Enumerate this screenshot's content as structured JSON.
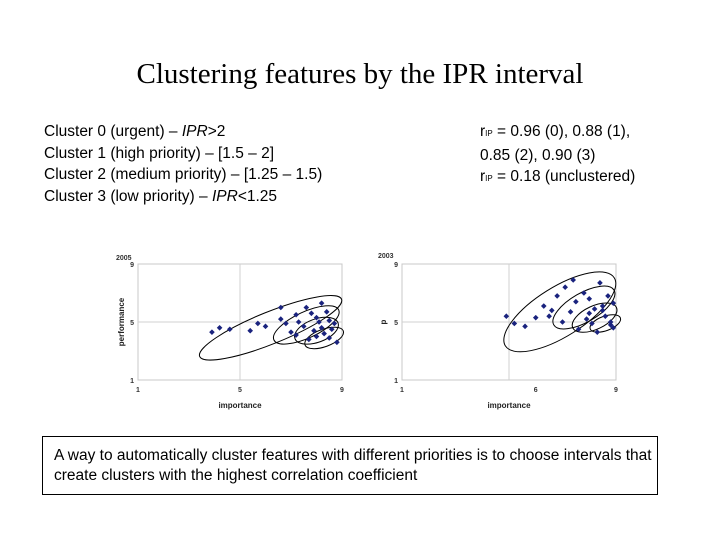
{
  "title": "Clustering features by the IPR interval",
  "clusters": [
    {
      "prefix": "Cluster 0 (urgent) – ",
      "ipr": "IPR",
      "suffix": ">2"
    },
    {
      "prefix": "Cluster 1 (high priority) – [1.5 – 2]",
      "ipr": "",
      "suffix": ""
    },
    {
      "prefix": "Cluster 2 (medium priority) – [1.25 – 1.5)",
      "ipr": "",
      "suffix": ""
    },
    {
      "prefix": "Cluster 3 (low priority) – ",
      "ipr": "IPR",
      "suffix": "<1.25"
    }
  ],
  "correlation": {
    "r_symbol": "r",
    "r_subscript": "IP",
    "line1_rest": " = 0.96 (0), 0.88 (1),",
    "line2": "0.85 (2), 0.90 (3)",
    "line3_rest": " = 0.18 (unclustered)"
  },
  "plots": [
    {
      "year": "2005",
      "xlabel": "importance",
      "ylabel": "performance",
      "xticks": [
        "1",
        "5",
        "9"
      ],
      "yticks": [
        "9",
        "5",
        "1"
      ],
      "marker_color": "#1a237e",
      "points": [
        [
          3.9,
          4.3
        ],
        [
          4.2,
          4.6
        ],
        [
          5.4,
          4.4
        ],
        [
          5.7,
          4.9
        ],
        [
          6.0,
          4.7
        ],
        [
          6.6,
          5.2
        ],
        [
          6.8,
          4.9
        ],
        [
          7.0,
          4.3
        ],
        [
          7.2,
          5.5
        ],
        [
          7.3,
          5.0
        ],
        [
          7.5,
          4.7
        ],
        [
          7.6,
          6.0
        ],
        [
          7.8,
          5.6
        ],
        [
          7.9,
          4.4
        ],
        [
          8.0,
          5.3
        ],
        [
          8.1,
          5.0
        ],
        [
          8.2,
          6.3
        ],
        [
          8.2,
          4.6
        ],
        [
          8.3,
          4.2
        ],
        [
          8.4,
          5.7
        ],
        [
          8.5,
          3.9
        ],
        [
          8.5,
          5.1
        ],
        [
          8.6,
          4.5
        ],
        [
          8.7,
          4.9
        ],
        [
          8.8,
          3.6
        ],
        [
          6.6,
          6.0
        ],
        [
          7.2,
          4.1
        ],
        [
          7.7,
          3.8
        ],
        [
          8.0,
          4.0
        ],
        [
          4.6,
          4.5
        ]
      ],
      "ellipses": "outlined"
    },
    {
      "year": "2003",
      "xlabel": "importance",
      "ylabel": "p",
      "xticks": [
        "1",
        "6",
        "9"
      ],
      "yticks": [
        "9",
        "5",
        "1"
      ],
      "marker_color": "#1a237e",
      "points": [
        [
          4.9,
          5.4
        ],
        [
          5.2,
          4.9
        ],
        [
          5.6,
          4.7
        ],
        [
          6.0,
          5.3
        ],
        [
          6.3,
          6.1
        ],
        [
          6.5,
          5.4
        ],
        [
          6.8,
          6.8
        ],
        [
          7.0,
          5.0
        ],
        [
          7.1,
          7.4
        ],
        [
          7.3,
          5.7
        ],
        [
          7.5,
          6.4
        ],
        [
          7.6,
          4.5
        ],
        [
          7.8,
          7.0
        ],
        [
          7.9,
          5.2
        ],
        [
          8.0,
          6.6
        ],
        [
          8.1,
          4.9
        ],
        [
          8.2,
          5.9
        ],
        [
          8.3,
          4.3
        ],
        [
          8.4,
          7.7
        ],
        [
          8.5,
          6.1
        ],
        [
          8.6,
          5.4
        ],
        [
          8.7,
          6.8
        ],
        [
          8.8,
          5.0
        ],
        [
          8.9,
          4.6
        ],
        [
          8.9,
          6.3
        ],
        [
          7.4,
          7.9
        ],
        [
          6.6,
          5.8
        ],
        [
          8.0,
          5.6
        ],
        [
          8.5,
          5.8
        ],
        [
          8.8,
          4.8
        ]
      ],
      "ellipses": "outlined"
    }
  ],
  "caption": "A way to automatically cluster features with different priorities is to choose intervals that create clusters with the highest correlation coefficient"
}
